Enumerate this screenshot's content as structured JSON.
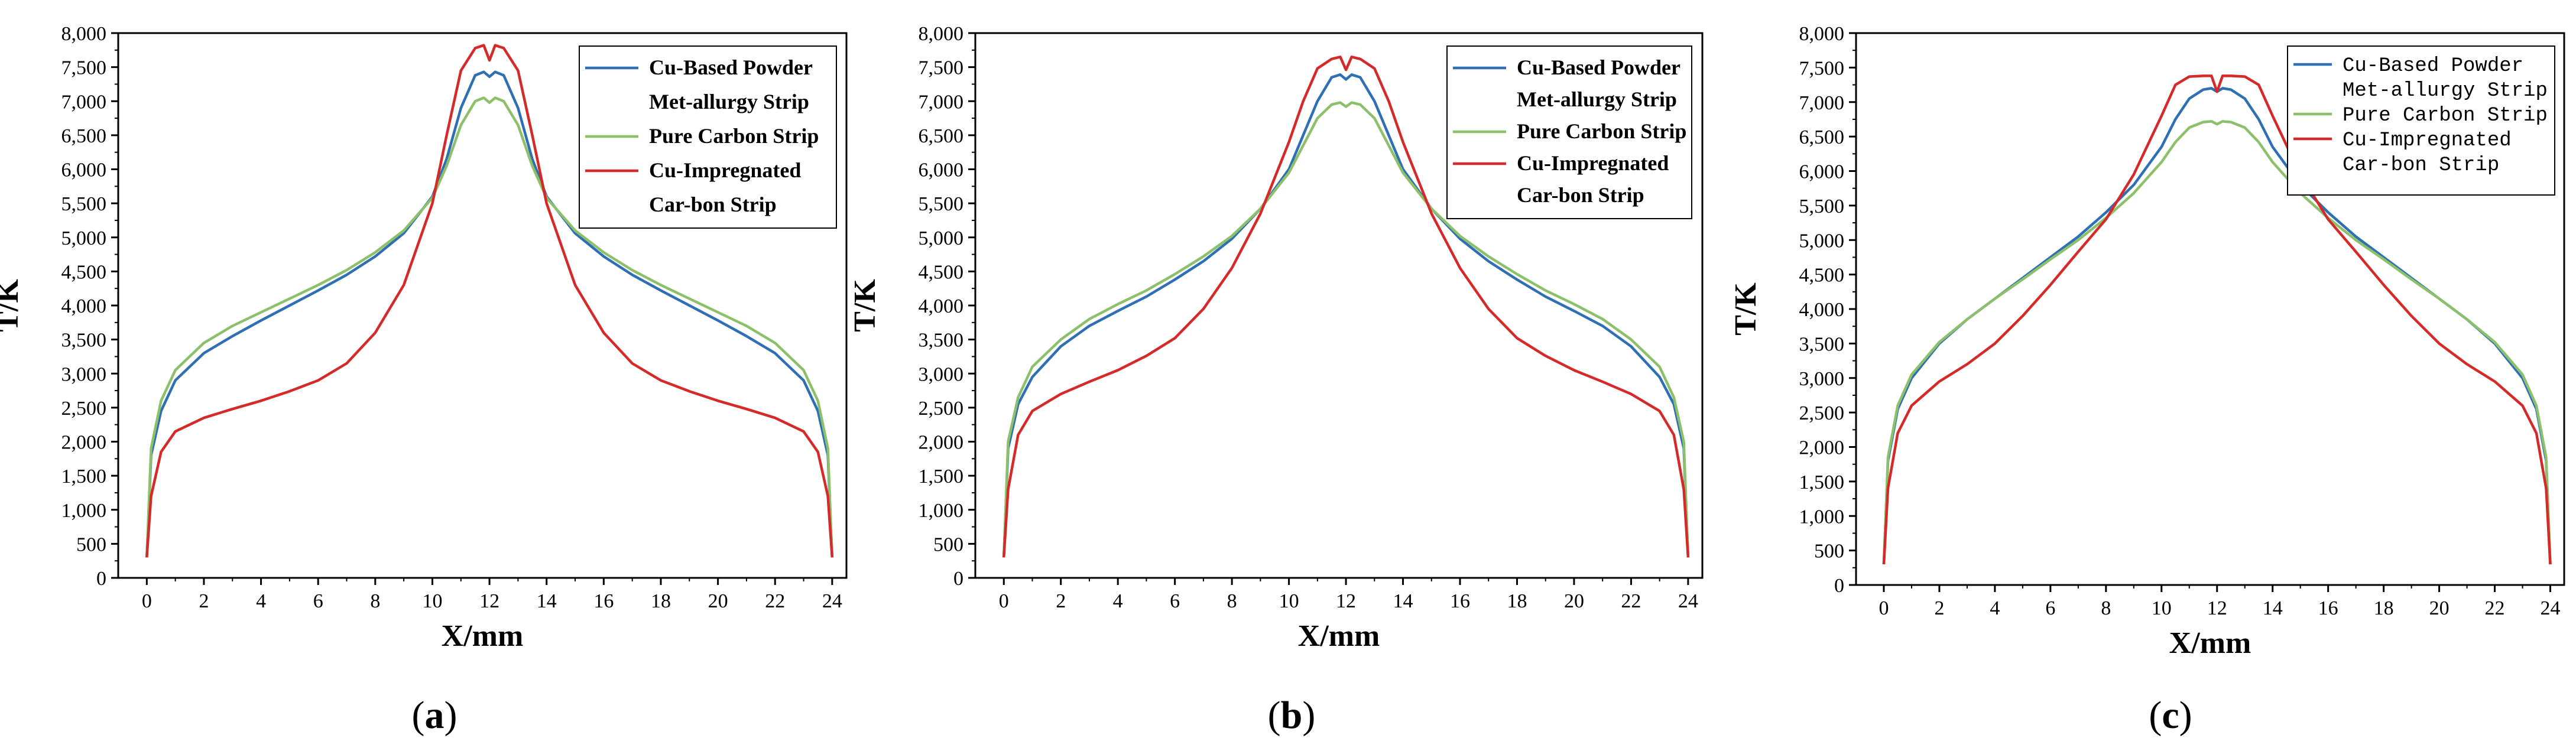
{
  "figure": {
    "panels": [
      {
        "caption_open": "(",
        "caption_letter": "a",
        "caption_close": ")"
      },
      {
        "caption_open": "(",
        "caption_letter": "b",
        "caption_close": ")"
      },
      {
        "caption_open": "(",
        "caption_letter": "c",
        "caption_close": ")"
      }
    ]
  },
  "chart_data": [
    {
      "type": "line",
      "panel": "a",
      "title": "",
      "xlabel": "X/mm",
      "ylabel": "T/K",
      "xlim": [
        -1,
        24.5
      ],
      "ylim": [
        0,
        8000
      ],
      "x_ticks": [
        "0",
        "2",
        "4",
        "6",
        "8",
        "10",
        "12",
        "14",
        "16",
        "18",
        "20",
        "22",
        "24"
      ],
      "y_ticks": [
        "0",
        "500",
        "1,000",
        "1,500",
        "2,000",
        "2,500",
        "3,000",
        "3,500",
        "4,000",
        "4,500",
        "5,000",
        "5,500",
        "6,000",
        "6,500",
        "7,000",
        "7,500",
        "8,000"
      ],
      "legend_position": "top-right",
      "legend_style": "serif",
      "series": [
        {
          "name": "Cu-Based Powder Met-allurgy Strip",
          "label_lines": [
            "Cu-Based Powder",
            "Met-allurgy Strip"
          ],
          "color": "#2f6fb4",
          "x": [
            0,
            0.15,
            0.5,
            1,
            2,
            3,
            4,
            5,
            6,
            7,
            8,
            9,
            10,
            10.5,
            11,
            11.5,
            11.8,
            12,
            12.2,
            12.5,
            13,
            13.5,
            14,
            15,
            16,
            17,
            18,
            19,
            20,
            21,
            22,
            23,
            23.5,
            23.85,
            24
          ],
          "y": [
            300,
            1800,
            2450,
            2900,
            3300,
            3550,
            3780,
            4000,
            4220,
            4450,
            4720,
            5060,
            5600,
            6150,
            6900,
            7380,
            7430,
            7360,
            7430,
            7380,
            6900,
            6150,
            5600,
            5060,
            4720,
            4450,
            4220,
            4000,
            3780,
            3550,
            3300,
            2900,
            2450,
            1800,
            300
          ]
        },
        {
          "name": "Pure Carbon Strip",
          "label_lines": [
            "Pure Carbon Strip"
          ],
          "color": "#8dc06a",
          "x": [
            0,
            0.15,
            0.5,
            1,
            2,
            3,
            4,
            5,
            6,
            7,
            8,
            9,
            10,
            10.5,
            11,
            11.5,
            11.8,
            12,
            12.2,
            12.5,
            13,
            13.5,
            14,
            15,
            16,
            17,
            18,
            19,
            20,
            21,
            22,
            23,
            23.5,
            23.85,
            24
          ],
          "y": [
            300,
            1900,
            2600,
            3050,
            3450,
            3700,
            3900,
            4100,
            4300,
            4520,
            4780,
            5100,
            5580,
            6050,
            6650,
            7000,
            7050,
            6980,
            7050,
            7000,
            6650,
            6050,
            5580,
            5100,
            4780,
            4520,
            4300,
            4100,
            3900,
            3700,
            3450,
            3050,
            2600,
            1900,
            300
          ]
        },
        {
          "name": "Cu-Impregnated Car-bon Strip",
          "label_lines": [
            "Cu-Impregnated",
            "Car-bon Strip"
          ],
          "color": "#d42a2a",
          "x": [
            0,
            0.15,
            0.5,
            1,
            2,
            3,
            4,
            5,
            6,
            7,
            8,
            9,
            10,
            10.5,
            11,
            11.5,
            11.8,
            12,
            12.2,
            12.5,
            13,
            13.5,
            14,
            15,
            16,
            17,
            18,
            19,
            20,
            21,
            22,
            23,
            23.5,
            23.85,
            24
          ],
          "y": [
            300,
            1200,
            1850,
            2150,
            2350,
            2480,
            2600,
            2740,
            2900,
            3150,
            3600,
            4300,
            5500,
            6500,
            7450,
            7780,
            7820,
            7600,
            7820,
            7780,
            7450,
            6500,
            5500,
            4300,
            3600,
            3150,
            2900,
            2740,
            2600,
            2480,
            2350,
            2150,
            1850,
            1200,
            300
          ]
        }
      ]
    },
    {
      "type": "line",
      "panel": "b",
      "title": "",
      "xlabel": "X/mm",
      "ylabel": "T/K",
      "xlim": [
        -1,
        24.5
      ],
      "ylim": [
        0,
        8000
      ],
      "x_ticks": [
        "0",
        "2",
        "4",
        "6",
        "8",
        "10",
        "12",
        "14",
        "16",
        "18",
        "20",
        "22",
        "24"
      ],
      "y_ticks": [
        "0",
        "500",
        "1,000",
        "1,500",
        "2,000",
        "2,500",
        "3,000",
        "3,500",
        "4,000",
        "4,500",
        "5,000",
        "5,500",
        "6,000",
        "6,500",
        "7,000",
        "7,500",
        "8,000"
      ],
      "legend_position": "top-right",
      "legend_style": "serif",
      "series": [
        {
          "name": "Cu-Based Powder Met-allurgy Strip",
          "label_lines": [
            "Cu-Based Powder",
            "Met-allurgy Strip"
          ],
          "color": "#2f6fb4",
          "x": [
            0,
            0.15,
            0.5,
            1,
            2,
            3,
            4,
            5,
            6,
            7,
            8,
            9,
            10,
            10.5,
            11,
            11.5,
            11.8,
            12,
            12.2,
            12.5,
            13,
            13.5,
            14,
            15,
            16,
            17,
            18,
            19,
            20,
            21,
            22,
            23,
            23.5,
            23.85,
            24
          ],
          "y": [
            300,
            1900,
            2550,
            2950,
            3400,
            3700,
            3920,
            4130,
            4380,
            4650,
            4980,
            5420,
            6000,
            6500,
            7000,
            7350,
            7390,
            7320,
            7390,
            7350,
            7000,
            6500,
            6000,
            5420,
            4980,
            4650,
            4380,
            4130,
            3920,
            3700,
            3400,
            2950,
            2550,
            1900,
            300
          ]
        },
        {
          "name": "Pure Carbon Strip",
          "label_lines": [
            "Pure Carbon Strip"
          ],
          "color": "#8dc06a",
          "x": [
            0,
            0.15,
            0.5,
            1,
            2,
            3,
            4,
            5,
            6,
            7,
            8,
            9,
            10,
            10.5,
            11,
            11.5,
            11.8,
            12,
            12.2,
            12.5,
            13,
            13.5,
            14,
            15,
            16,
            17,
            18,
            19,
            20,
            21,
            22,
            23,
            23.5,
            23.85,
            24
          ],
          "y": [
            300,
            2000,
            2650,
            3100,
            3500,
            3800,
            4020,
            4220,
            4460,
            4720,
            5020,
            5420,
            5950,
            6350,
            6750,
            6950,
            6980,
            6920,
            6980,
            6950,
            6750,
            6350,
            5950,
            5420,
            5020,
            4720,
            4460,
            4220,
            4020,
            3800,
            3500,
            3100,
            2650,
            2000,
            300
          ]
        },
        {
          "name": "Cu-Impregnated Car-bon Strip",
          "label_lines": [
            "Cu-Impregnated",
            "Car-bon Strip"
          ],
          "color": "#d42a2a",
          "x": [
            0,
            0.15,
            0.5,
            1,
            2,
            3,
            4,
            5,
            6,
            7,
            8,
            9,
            10,
            10.5,
            11,
            11.5,
            11.8,
            12,
            12.2,
            12.5,
            13,
            13.5,
            14,
            15,
            16,
            17,
            18,
            19,
            20,
            21,
            22,
            23,
            23.5,
            23.85,
            24
          ],
          "y": [
            300,
            1300,
            2100,
            2450,
            2700,
            2880,
            3050,
            3260,
            3520,
            3950,
            4550,
            5350,
            6400,
            7000,
            7480,
            7620,
            7650,
            7460,
            7650,
            7620,
            7480,
            7000,
            6400,
            5350,
            4550,
            3950,
            3520,
            3260,
            3050,
            2880,
            2700,
            2450,
            2100,
            1300,
            300
          ]
        }
      ]
    },
    {
      "type": "line",
      "panel": "c",
      "title": "",
      "xlabel": "X/mm",
      "ylabel": "T/K",
      "xlim": [
        -1,
        24.5
      ],
      "ylim": [
        0,
        8000
      ],
      "x_ticks": [
        "0",
        "2",
        "4",
        "6",
        "8",
        "10",
        "12",
        "14",
        "16",
        "18",
        "20",
        "22",
        "24"
      ],
      "y_ticks": [
        "0",
        "500",
        "1,000",
        "1,500",
        "2,000",
        "2,500",
        "3,000",
        "3,500",
        "4,000",
        "4,500",
        "5,000",
        "5,500",
        "6,000",
        "6,500",
        "7,000",
        "7,500",
        "8,000"
      ],
      "legend_position": "top-right",
      "legend_style": "mono",
      "series": [
        {
          "name": "Cu-Based Powder Met-allurgy Strip",
          "label_lines": [
            "Cu-Based Powder",
            "Met-allurgy Strip"
          ],
          "color": "#2f6fb4",
          "x": [
            0,
            0.15,
            0.5,
            1,
            2,
            3,
            4,
            5,
            6,
            7,
            8,
            9,
            10,
            10.5,
            11,
            11.5,
            11.8,
            12,
            12.2,
            12.5,
            13,
            13.5,
            14,
            15,
            16,
            17,
            18,
            19,
            20,
            21,
            22,
            23,
            23.5,
            23.85,
            24
          ],
          "y": [
            300,
            1800,
            2550,
            3000,
            3500,
            3850,
            4150,
            4450,
            4750,
            5050,
            5400,
            5800,
            6350,
            6750,
            7050,
            7180,
            7200,
            7150,
            7200,
            7180,
            7050,
            6750,
            6350,
            5800,
            5400,
            5050,
            4750,
            4450,
            4150,
            3850,
            3500,
            3000,
            2550,
            1800,
            300
          ]
        },
        {
          "name": "Pure Carbon Strip",
          "label_lines": [
            "Pure Carbon Strip"
          ],
          "color": "#8dc06a",
          "x": [
            0,
            0.15,
            0.5,
            1,
            2,
            3,
            4,
            5,
            6,
            7,
            8,
            9,
            10,
            10.5,
            11,
            11.5,
            11.8,
            12,
            12.2,
            12.5,
            13,
            13.5,
            14,
            15,
            16,
            17,
            18,
            19,
            20,
            21,
            22,
            23,
            23.5,
            23.85,
            24
          ],
          "y": [
            300,
            1850,
            2600,
            3050,
            3520,
            3850,
            4150,
            4430,
            4720,
            5000,
            5320,
            5680,
            6130,
            6420,
            6630,
            6710,
            6720,
            6680,
            6720,
            6710,
            6630,
            6420,
            6130,
            5680,
            5320,
            5000,
            4720,
            4430,
            4150,
            3850,
            3520,
            3050,
            2600,
            1850,
            300
          ]
        },
        {
          "name": "Cu-Impregnated Car-bon Strip",
          "label_lines": [
            "Cu-Impregnated",
            "Car-bon Strip"
          ],
          "color": "#d42a2a",
          "x": [
            0,
            0.15,
            0.5,
            1,
            2,
            3,
            4,
            5,
            6,
            7,
            8,
            9,
            10,
            10.5,
            11,
            11.5,
            11.8,
            12,
            12.2,
            12.5,
            13,
            13.5,
            14,
            15,
            16,
            17,
            18,
            19,
            20,
            21,
            22,
            23,
            23.5,
            23.85,
            24
          ],
          "y": [
            300,
            1400,
            2200,
            2600,
            2950,
            3200,
            3500,
            3900,
            4350,
            4830,
            5300,
            5950,
            6800,
            7250,
            7370,
            7380,
            7380,
            7150,
            7380,
            7380,
            7370,
            7250,
            6800,
            5950,
            5300,
            4830,
            4350,
            3900,
            3500,
            3200,
            2950,
            2600,
            2200,
            1400,
            300
          ]
        }
      ]
    }
  ]
}
